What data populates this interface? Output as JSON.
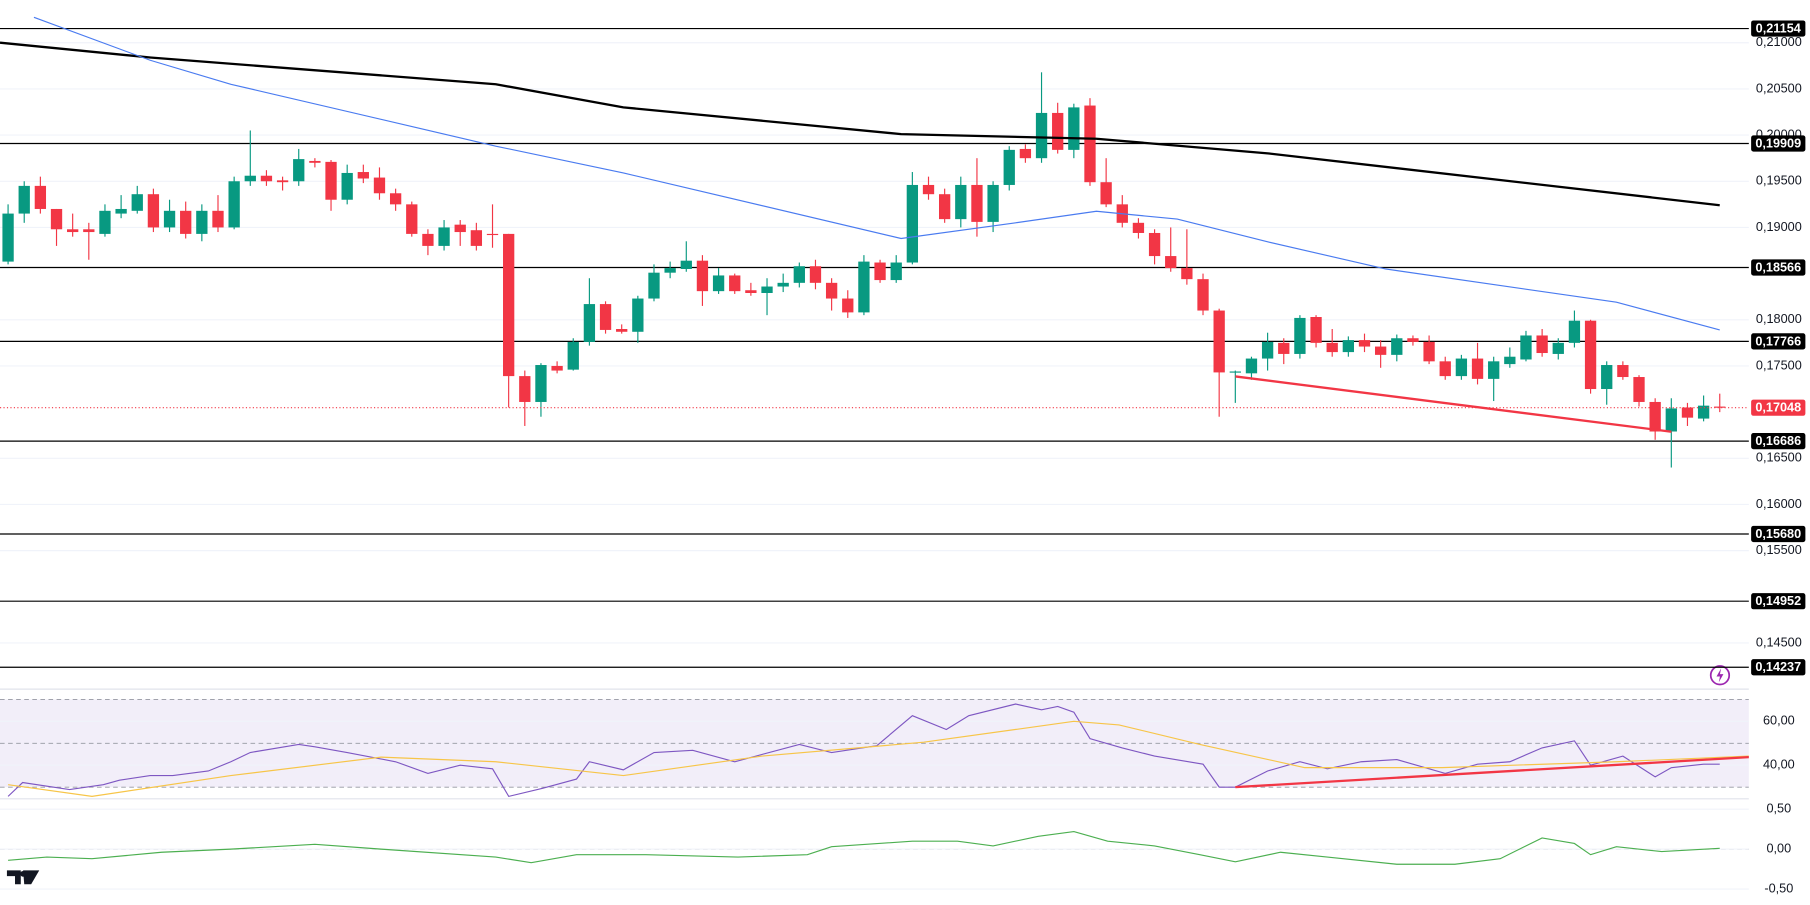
{
  "chart_data": [
    {
      "type": "candlestick",
      "xlim": [
        -0.5,
        107.8
      ],
      "ylim": [
        0.14,
        0.21463
      ],
      "yticks": [
        {
          "value": 0.21,
          "label": "0,21000"
        },
        {
          "value": 0.205,
          "label": "0,20500"
        },
        {
          "value": 0.2,
          "label": "0,20000"
        },
        {
          "value": 0.195,
          "label": "0,19500"
        },
        {
          "value": 0.19,
          "label": "0,19000"
        },
        {
          "value": 0.18,
          "label": "0,18000"
        },
        {
          "value": 0.175,
          "label": "0,17500"
        },
        {
          "value": 0.165,
          "label": "0,16500"
        },
        {
          "value": 0.16,
          "label": "0,16000"
        },
        {
          "value": 0.155,
          "label": "0,15500"
        },
        {
          "value": 0.145,
          "label": "0,14500"
        }
      ],
      "up_color": "#089981",
      "down_color": "#f23645",
      "open": [
        0.1863,
        0.1915,
        0.1945,
        0.192,
        0.1898,
        0.1898,
        0.1893,
        0.1915,
        0.1918,
        0.1936,
        0.19,
        0.1918,
        0.1893,
        0.1918,
        0.19,
        0.195,
        0.1956,
        0.1951,
        0.195,
        0.1972,
        0.1971,
        0.193,
        0.196,
        0.1954,
        0.1937,
        0.1925,
        0.1893,
        0.188,
        0.1903,
        0.1897,
        0.1893,
        0.1893,
        0.1739,
        0.1711,
        0.175,
        0.1746,
        0.1776,
        0.1817,
        0.179,
        0.1787,
        0.1823,
        0.1851,
        0.1855,
        0.1864,
        0.1831,
        0.1848,
        0.1832,
        0.1829,
        0.1836,
        0.184,
        0.1858,
        0.184,
        0.1823,
        0.1808,
        0.1862,
        0.1843,
        0.1862,
        0.1946,
        0.1936,
        0.1909,
        0.1946,
        0.1906,
        0.1946,
        0.1985,
        0.1975,
        0.2024,
        0.1984,
        0.2032,
        0.1949,
        0.1925,
        0.1905,
        0.1894,
        0.1869,
        0.1856,
        0.1844,
        0.181,
        0.1743,
        0.1742,
        0.1758,
        0.1775,
        0.1763,
        0.1803,
        0.1775,
        0.1765,
        0.1778,
        0.1771,
        0.1762,
        0.178,
        0.1776,
        0.1755,
        0.1739,
        0.1758,
        0.1736,
        0.1752,
        0.1757,
        0.1783,
        0.1763,
        0.1775,
        0.1799,
        0.1725,
        0.1751,
        0.1738,
        0.1711,
        0.1679,
        0.1705,
        0.1693,
        0.1706
      ],
      "high": [
        0.1925,
        0.195,
        0.1955,
        0.192,
        0.1915,
        0.1905,
        0.1925,
        0.1935,
        0.1945,
        0.1942,
        0.193,
        0.1928,
        0.1925,
        0.1935,
        0.1955,
        0.2005,
        0.1962,
        0.1955,
        0.1985,
        0.1975,
        0.1973,
        0.1968,
        0.1968,
        0.1965,
        0.1942,
        0.1928,
        0.1898,
        0.1908,
        0.1908,
        0.1905,
        0.1925,
        0.1893,
        0.1745,
        0.1753,
        0.1755,
        0.178,
        0.1845,
        0.182,
        0.1795,
        0.1826,
        0.186,
        0.1863,
        0.1885,
        0.187,
        0.1856,
        0.185,
        0.184,
        0.1845,
        0.185,
        0.1862,
        0.1865,
        0.1845,
        0.1832,
        0.187,
        0.1865,
        0.187,
        0.196,
        0.1955,
        0.1942,
        0.1955,
        0.1975,
        0.195,
        0.1988,
        0.199,
        0.2068,
        0.2035,
        0.2034,
        0.204,
        0.1975,
        0.1935,
        0.191,
        0.1898,
        0.19,
        0.1898,
        0.185,
        0.1812,
        0.1745,
        0.176,
        0.1786,
        0.178,
        0.1805,
        0.1805,
        0.179,
        0.1782,
        0.1785,
        0.1778,
        0.1784,
        0.1783,
        0.1783,
        0.176,
        0.1762,
        0.1775,
        0.176,
        0.177,
        0.1788,
        0.179,
        0.178,
        0.181,
        0.18,
        0.1755,
        0.1755,
        0.174,
        0.1715,
        0.1715,
        0.171,
        0.1718,
        0.172
      ],
      "low": [
        0.186,
        0.1905,
        0.1915,
        0.188,
        0.189,
        0.1865,
        0.189,
        0.191,
        0.1915,
        0.1895,
        0.1895,
        0.1888,
        0.1885,
        0.1895,
        0.1898,
        0.1945,
        0.1945,
        0.194,
        0.1945,
        0.1965,
        0.1918,
        0.1925,
        0.1948,
        0.193,
        0.1918,
        0.189,
        0.187,
        0.1875,
        0.188,
        0.1875,
        0.1878,
        0.1705,
        0.1685,
        0.1695,
        0.1742,
        0.1745,
        0.1772,
        0.1785,
        0.1785,
        0.1775,
        0.182,
        0.1845,
        0.1852,
        0.1815,
        0.1828,
        0.1828,
        0.1826,
        0.1805,
        0.183,
        0.1835,
        0.1833,
        0.181,
        0.1802,
        0.1805,
        0.184,
        0.184,
        0.186,
        0.193,
        0.1905,
        0.19,
        0.189,
        0.1895,
        0.194,
        0.197,
        0.197,
        0.198,
        0.1975,
        0.1945,
        0.1922,
        0.19,
        0.1888,
        0.186,
        0.1852,
        0.1838,
        0.1805,
        0.1695,
        0.171,
        0.1735,
        0.1745,
        0.1752,
        0.1758,
        0.177,
        0.176,
        0.176,
        0.1765,
        0.1748,
        0.1755,
        0.1772,
        0.1752,
        0.1735,
        0.1735,
        0.173,
        0.1712,
        0.1748,
        0.1755,
        0.176,
        0.1757,
        0.177,
        0.172,
        0.1708,
        0.1735,
        0.1706,
        0.167,
        0.164,
        0.1685,
        0.169,
        0.17
      ],
      "close": [
        0.1915,
        0.1945,
        0.192,
        0.1898,
        0.1895,
        0.1895,
        0.1918,
        0.192,
        0.1936,
        0.19,
        0.1918,
        0.1893,
        0.1918,
        0.19,
        0.195,
        0.1956,
        0.195,
        0.1949,
        0.1974,
        0.197,
        0.193,
        0.1959,
        0.1953,
        0.1937,
        0.1925,
        0.1893,
        0.188,
        0.19,
        0.1895,
        0.188,
        0.1892,
        0.1739,
        0.1711,
        0.1751,
        0.1745,
        0.1776,
        0.1817,
        0.1789,
        0.1787,
        0.1823,
        0.1851,
        0.1856,
        0.1864,
        0.1831,
        0.1848,
        0.1831,
        0.1829,
        0.1836,
        0.184,
        0.1858,
        0.184,
        0.1823,
        0.1808,
        0.1863,
        0.1843,
        0.1862,
        0.1946,
        0.1936,
        0.1909,
        0.1946,
        0.1906,
        0.1946,
        0.1984,
        0.1975,
        0.2024,
        0.1984,
        0.203,
        0.1949,
        0.1925,
        0.1905,
        0.1894,
        0.1869,
        0.1856,
        0.1844,
        0.181,
        0.1743,
        0.1744,
        0.1758,
        0.1776,
        0.1763,
        0.1802,
        0.1775,
        0.1765,
        0.1778,
        0.1771,
        0.1762,
        0.178,
        0.1776,
        0.1755,
        0.1739,
        0.1758,
        0.1736,
        0.1755,
        0.176,
        0.1783,
        0.1764,
        0.1775,
        0.1799,
        0.1725,
        0.1751,
        0.1738,
        0.1711,
        0.1679,
        0.1704,
        0.1694,
        0.1707,
        0.17048
      ],
      "lines": [
        {
          "color": "#000000",
          "width": 2,
          "x": [
            -0.5,
            8.8,
            30.2,
            38.1,
            55.3,
            67.4,
            78.1,
            106
          ],
          "values": [
            0.21,
            0.2084,
            0.2055,
            0.203,
            0.2001,
            0.1996,
            0.198,
            0.1924
          ]
        },
        {
          "color": "#4a7bf0",
          "width": 1,
          "x": [
            1.6,
            8.8,
            13.8,
            30.2,
            38.1,
            55.3,
            62.4,
            67.4,
            72.4,
            78.1,
            85.3,
            99.6,
            106
          ],
          "values": [
            0.21275,
            0.2081,
            0.2055,
            0.1988,
            0.1959,
            0.1888,
            0.1905,
            0.19175,
            0.1909,
            0.1884,
            0.1855,
            0.1819,
            0.1789
          ]
        },
        {
          "color": "#f23645",
          "width": 2,
          "x": [
            76,
            103
          ],
          "values": [
            0.17387,
            0.16788
          ]
        }
      ],
      "levels": [
        {
          "value": 0.21154,
          "label": "0,21154"
        },
        {
          "value": 0.19909,
          "label": "0,19909"
        },
        {
          "value": 0.18566,
          "label": "0,18566"
        },
        {
          "value": 0.17766,
          "label": "0,17766"
        },
        {
          "value": 0.16686,
          "label": "0,16686"
        },
        {
          "value": 0.1568,
          "label": "0,15680"
        },
        {
          "value": 0.14952,
          "label": "0,14952"
        },
        {
          "value": 0.14237,
          "label": "0,14237"
        }
      ],
      "last_price": {
        "value": 0.17048,
        "label": "0,17048",
        "color": "#f23645"
      }
    },
    {
      "type": "line",
      "xlim": [
        -0.5,
        107.8
      ],
      "ylim": [
        24.7,
        74.7
      ],
      "yticks": [
        {
          "value": 60,
          "label": "60,00"
        },
        {
          "value": 40,
          "label": "40,00"
        }
      ],
      "bands": [
        30,
        50,
        70
      ],
      "lines": [
        {
          "color": "#7e57c2",
          "width": 1,
          "x": [
            0,
            0.9,
            3.8,
            5.9,
            6.9,
            8.8,
            10.2,
            12.4,
            13.8,
            15,
            18,
            19,
            21,
            24,
            26,
            28,
            30,
            31,
            33.1,
            35.2,
            36,
            38.1,
            40,
            42.4,
            45,
            49,
            51,
            53.8,
            56,
            58.1,
            59.5,
            62.4,
            64,
            65,
            66,
            67,
            69,
            71,
            74,
            75,
            76,
            78,
            80,
            81.7,
            83.8,
            86,
            89,
            91,
            93,
            95,
            97,
            98,
            100,
            102,
            103,
            105,
            106
          ],
          "values": [
            25.8,
            32.1,
            28.9,
            31.1,
            33.2,
            35.3,
            35.3,
            37.4,
            41.6,
            45.8,
            49.5,
            48.4,
            45.8,
            41.6,
            36.3,
            40,
            38.4,
            25.8,
            29.5,
            33.7,
            41.6,
            37.9,
            45.8,
            46.8,
            41.6,
            49.5,
            45.8,
            48.9,
            62.6,
            56.3,
            62.6,
            67.9,
            65.3,
            66.8,
            64.2,
            52.1,
            47.9,
            44.2,
            40.5,
            30,
            30,
            37.4,
            41.6,
            38.4,
            41.6,
            42.6,
            36.3,
            40.5,
            41.6,
            47.9,
            51.1,
            40,
            44.2,
            34.7,
            38.9,
            40.5,
            40.5
          ]
        },
        {
          "color": "#f7c548",
          "width": 1,
          "x": [
            0,
            5.2,
            13.8,
            23.1,
            30.2,
            38.1,
            46.7,
            56.7,
            66,
            68.8,
            73.8,
            80.3,
            88.8,
            99.6,
            107.8
          ],
          "values": [
            31.1,
            25.8,
            35.3,
            43.7,
            41.6,
            35.3,
            44.2,
            50.5,
            60,
            58.4,
            49.5,
            38.9,
            38.9,
            41.6,
            44.2
          ]
        },
        {
          "color": "#f23645",
          "width": 2,
          "x": [
            76,
            107.8
          ],
          "values": [
            30,
            43.7
          ]
        }
      ]
    },
    {
      "type": "line",
      "xlim": [
        -0.5,
        107.8
      ],
      "ylim": [
        -0.7,
        0.63
      ],
      "yticks": [
        {
          "value": 0.5,
          "label": "0,50"
        },
        {
          "value": 0,
          "label": "0,00"
        },
        {
          "value": -0.5,
          "label": "-0,50"
        }
      ],
      "bands": [
        0
      ],
      "lines": [
        {
          "color": "#4caf50",
          "width": 1,
          "x": [
            0,
            2.4,
            5.2,
            9.5,
            13.8,
            19,
            23.1,
            30.2,
            32.4,
            35.2,
            39.5,
            45.2,
            49.5,
            51,
            56,
            58.8,
            61,
            63.8,
            66,
            68.1,
            71,
            73.8,
            76,
            78.8,
            81.7,
            86,
            89.6,
            92.4,
            95,
            97,
            98,
            99.6,
            102.4,
            106
          ],
          "values": [
            -0.14,
            -0.1,
            -0.12,
            -0.04,
            0,
            0.06,
            0,
            -0.1,
            -0.17,
            -0.07,
            -0.07,
            -0.1,
            -0.07,
            0.03,
            0.1,
            0.1,
            0.04,
            0.16,
            0.22,
            0.1,
            0.04,
            -0.07,
            -0.16,
            -0.04,
            -0.1,
            -0.19,
            -0.19,
            -0.12,
            0.14,
            0.07,
            -0.07,
            0.03,
            -0.03,
            0.01
          ]
        }
      ]
    }
  ]
}
